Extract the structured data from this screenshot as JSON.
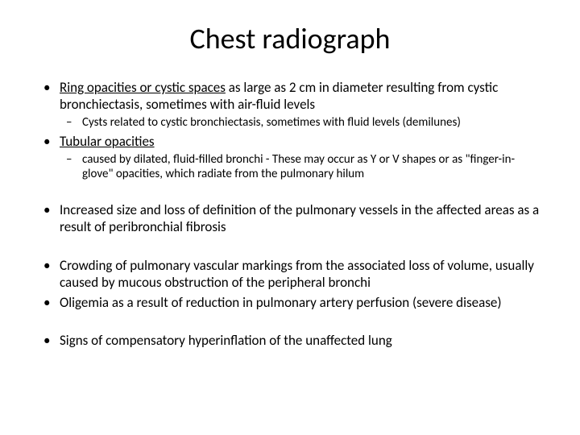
{
  "title": "Chest radiograph",
  "bullets": {
    "b1_u": "Ring opacities or cystic spaces",
    "b1_rest": " as large as 2 cm in diameter resulting from cystic bronchiectasis, sometimes with air-fluid levels",
    "b1_sub1": "Cysts related to cystic bronchiectasis, sometimes with fluid levels (demilunes)",
    "b2_u": "Tubular opacities",
    "b2_sub1": "caused by dilated, fluid-filled bronchi - These may occur as Y or V shapes or as \"finger-in-glove\" opacities, which radiate from the pulmonary hilum",
    "b3": "Increased size and loss of definition of the pulmonary vessels in the affected areas as a result of peribronchial fibrosis",
    "b4": "Crowding of pulmonary vascular markings from the associated loss of volume, usually caused by mucous obstruction of the peripheral bronchi",
    "b5": "Oligemia as a result of reduction in pulmonary artery perfusion (severe disease)",
    "b6": "Signs of compensatory hyperinflation of the unaffected lung"
  },
  "style": {
    "background_color": "#ffffff",
    "text_color": "#000000",
    "title_fontsize": 36,
    "body_fontsize": 17,
    "sub_fontsize": 15,
    "font_family": "Calibri, Arial, sans-serif"
  }
}
